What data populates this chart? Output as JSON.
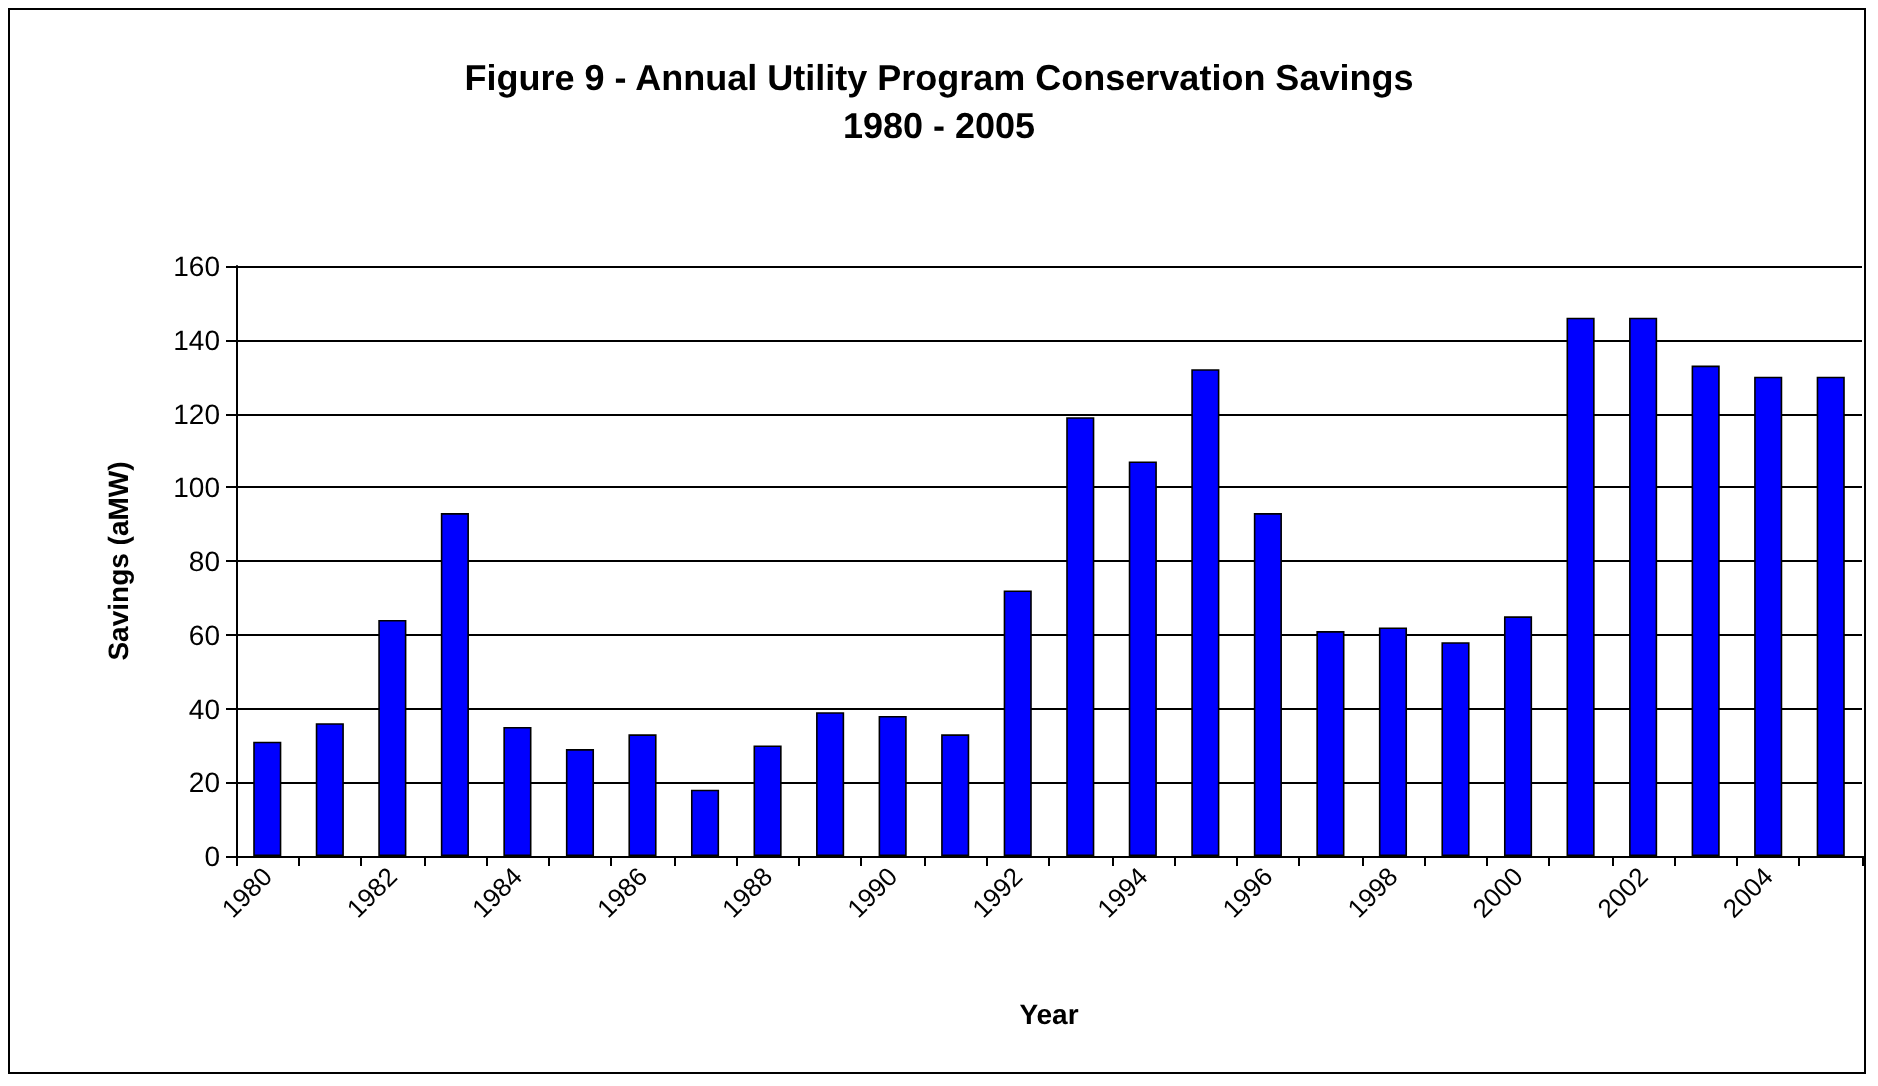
{
  "chart_data": {
    "type": "bar",
    "title": "Figure 9 - Annual Utility Program Conservation Savings\n1980 - 2005",
    "xlabel": "Year",
    "ylabel": "Savings (aMW)",
    "categories": [
      "1980",
      null,
      "1982",
      null,
      "1984",
      null,
      "1986",
      null,
      "1988",
      null,
      "1990",
      null,
      "1992",
      null,
      "1994",
      null,
      "1996",
      null,
      "1998",
      null,
      "2000",
      null,
      "2002",
      null,
      "2004",
      null
    ],
    "values": [
      31,
      36,
      64,
      93,
      35,
      29,
      33,
      18,
      30,
      39,
      38,
      33,
      72,
      119,
      107,
      132,
      93,
      61,
      62,
      58,
      65,
      146,
      146,
      133,
      130,
      130
    ],
    "color": "#0000ff",
    "ylim": [
      0,
      160
    ],
    "yticks": [
      0,
      20,
      40,
      60,
      80,
      100,
      120,
      140,
      160
    ],
    "grid": "y"
  }
}
